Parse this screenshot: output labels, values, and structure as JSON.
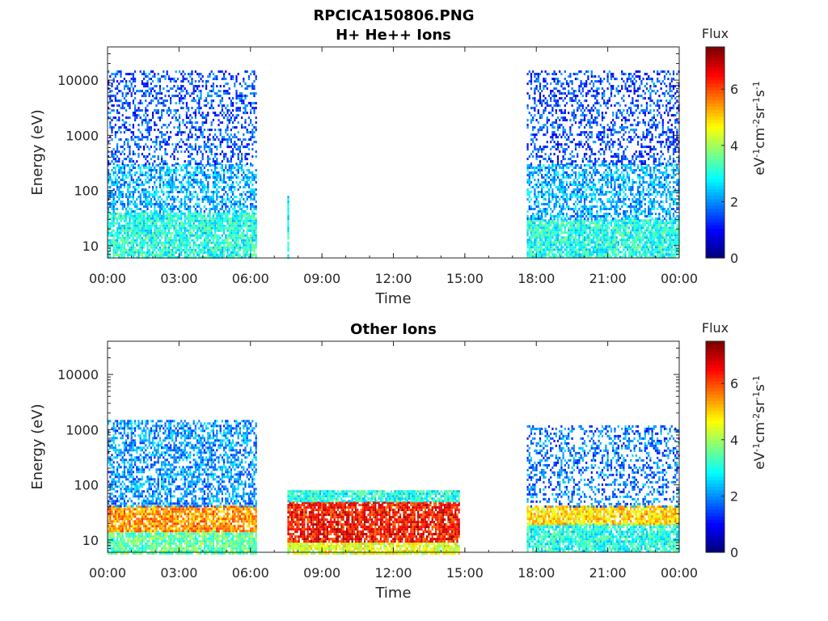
{
  "figure_title": "RPCICA150806.PNG",
  "chart_data": [
    {
      "type": "heatmap",
      "title": "H+ He++ Ions",
      "xlabel": "Time",
      "ylabel": "Energy (eV)",
      "x_ticks": [
        "00:00",
        "03:00",
        "06:00",
        "09:00",
        "12:00",
        "15:00",
        "18:00",
        "21:00",
        "00:00"
      ],
      "x_range_hours": [
        0,
        24
      ],
      "y_scale": "log",
      "y_ticks": [
        "10",
        "100",
        "1000",
        "10000"
      ],
      "y_range": [
        6,
        40000
      ],
      "colorbar": {
        "title": "Flux",
        "range": [
          0,
          7.5
        ],
        "ticks": [
          "0",
          "2",
          "4",
          "6"
        ],
        "colormap": "jet"
      },
      "observation_intervals_hours": [
        [
          0,
          6.2
        ],
        [
          7.55,
          7.6
        ],
        [
          17.6,
          24
        ]
      ],
      "flux_bands": [
        {
          "interval_hours": [
            0,
            6.2
          ],
          "energy_eV": [
            6,
            40
          ],
          "flux": 3
        },
        {
          "interval_hours": [
            0,
            6.2
          ],
          "energy_eV": [
            40,
            300
          ],
          "flux": 2.2
        },
        {
          "interval_hours": [
            0,
            6.2
          ],
          "energy_eV": [
            300,
            15000
          ],
          "flux": 1.5
        },
        {
          "interval_hours": [
            7.55,
            7.6
          ],
          "energy_eV": [
            6,
            80
          ],
          "flux": 3
        },
        {
          "interval_hours": [
            17.6,
            24
          ],
          "energy_eV": [
            6,
            30
          ],
          "flux": 3
        },
        {
          "interval_hours": [
            17.6,
            24
          ],
          "energy_eV": [
            30,
            300
          ],
          "flux": 2.2
        },
        {
          "interval_hours": [
            17.6,
            24
          ],
          "energy_eV": [
            300,
            15000
          ],
          "flux": 1.4
        }
      ]
    },
    {
      "type": "heatmap",
      "title": "Other Ions",
      "xlabel": "Time",
      "ylabel": "Energy (eV)",
      "x_ticks": [
        "00:00",
        "03:00",
        "06:00",
        "09:00",
        "12:00",
        "15:00",
        "18:00",
        "21:00",
        "00:00"
      ],
      "x_range_hours": [
        0,
        24
      ],
      "y_scale": "log",
      "y_ticks": [
        "10",
        "100",
        "1000",
        "10000"
      ],
      "y_range": [
        6,
        40000
      ],
      "colorbar": {
        "title": "Flux",
        "range": [
          0,
          7.5
        ],
        "ticks": [
          "0",
          "2",
          "4",
          "6"
        ],
        "colormap": "jet"
      },
      "observation_intervals_hours": [
        [
          0,
          6.2
        ],
        [
          7.55,
          14.75
        ],
        [
          17.6,
          24
        ]
      ],
      "flux_bands": [
        {
          "interval_hours": [
            0,
            6.2
          ],
          "energy_eV": [
            6,
            15
          ],
          "flux": 3.5
        },
        {
          "interval_hours": [
            0,
            6.2
          ],
          "energy_eV": [
            15,
            42
          ],
          "flux": 5.5
        },
        {
          "interval_hours": [
            0,
            6.2
          ],
          "energy_eV": [
            42,
            1500
          ],
          "flux": 2
        },
        {
          "interval_hours": [
            7.55,
            14.75
          ],
          "energy_eV": [
            6,
            9
          ],
          "flux": 4.5
        },
        {
          "interval_hours": [
            7.55,
            14.75
          ],
          "energy_eV": [
            9,
            50
          ],
          "flux": 6.5
        },
        {
          "interval_hours": [
            7.55,
            14.75
          ],
          "energy_eV": [
            50,
            80
          ],
          "flux": 3
        },
        {
          "interval_hours": [
            17.6,
            24
          ],
          "energy_eV": [
            6,
            20
          ],
          "flux": 3
        },
        {
          "interval_hours": [
            17.6,
            24
          ],
          "energy_eV": [
            20,
            42
          ],
          "flux": 5
        },
        {
          "interval_hours": [
            17.6,
            24
          ],
          "energy_eV": [
            42,
            1200
          ],
          "flux": 1.8
        }
      ]
    }
  ]
}
